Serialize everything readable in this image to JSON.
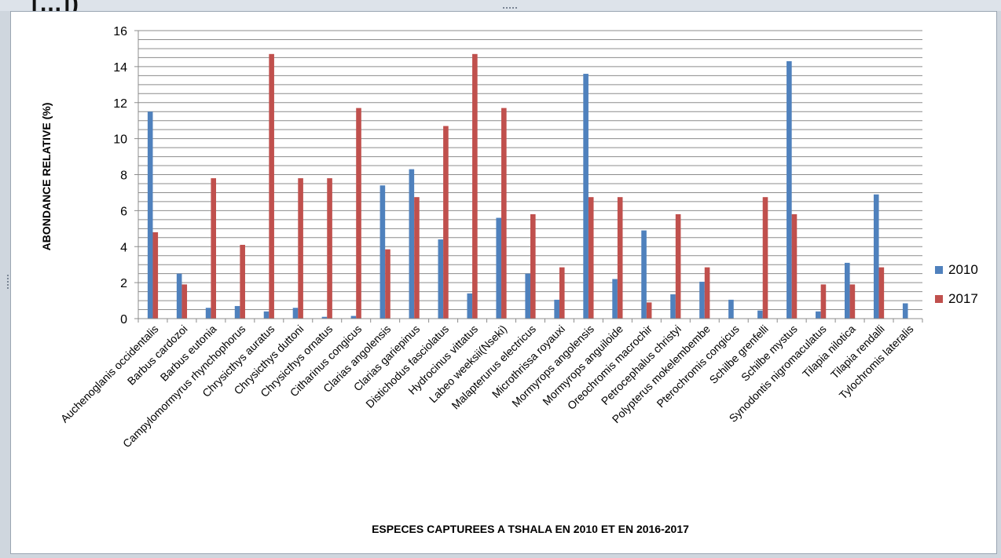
{
  "chart_data": {
    "type": "bar",
    "xlabel": "ESPECES CAPTUREES A TSHALA EN 2010 ET EN 2016-2017",
    "ylabel": "ABONDANCE RELATIVE  (%)",
    "ylim": [
      0,
      16
    ],
    "yticks": [
      "0",
      "2",
      "4",
      "6",
      "8",
      "10",
      "12",
      "14",
      "16"
    ],
    "grid": true,
    "legend": "right",
    "categories": [
      "Auchenoglanis occidentalis",
      "Barbus cardozoi",
      "Barbus eutonia",
      "Campylomormyrus rhynchophorus",
      "Chrysicthys auratus",
      "Chrysicthys duttoni",
      "Chrysicthys ornatus",
      "Citharinus congicus",
      "Clarias angolensis",
      "Clarias gariepinus",
      "Distichodus fasciolatus",
      "Hydrocinus vittatus",
      "Labeo weeksii(Nseki)",
      "Malapterurus electricus",
      "Microthrissa royauxi",
      "Mormyrops  angolensis",
      "Mormyrops anguiloide",
      "Oreochromis macrochir",
      "Petrocephalus christyi",
      "Polypterus mokelembembe",
      "Pterochromis congicus",
      "Schilbe grenfelli",
      "Schilbe mystus",
      "Synodontis nigromaculatus",
      "Tilapia nilotica",
      "Tilapia rendalli",
      "Tylochromis lateralis"
    ],
    "series": [
      {
        "name": "2010",
        "color": "#4f81bd",
        "values": [
          11.5,
          2.5,
          0.6,
          0.7,
          0.4,
          0.6,
          0.1,
          0.15,
          7.4,
          8.3,
          4.4,
          1.4,
          5.6,
          2.5,
          1.05,
          13.6,
          2.2,
          4.9,
          1.35,
          2.05,
          1.05,
          0.45,
          14.3,
          0.4,
          3.1,
          6.9,
          0.85
        ]
      },
      {
        "name": "2017",
        "color": "#c0504d",
        "values": [
          4.8,
          1.9,
          7.8,
          4.1,
          14.7,
          7.8,
          7.8,
          11.7,
          3.85,
          6.75,
          10.7,
          14.7,
          11.7,
          5.8,
          2.85,
          6.75,
          6.75,
          0.9,
          5.8,
          2.85,
          0,
          6.75,
          5.8,
          1.9,
          1.9,
          2.85,
          0
        ]
      }
    ]
  },
  "page": {
    "top_title": "[...])"
  }
}
